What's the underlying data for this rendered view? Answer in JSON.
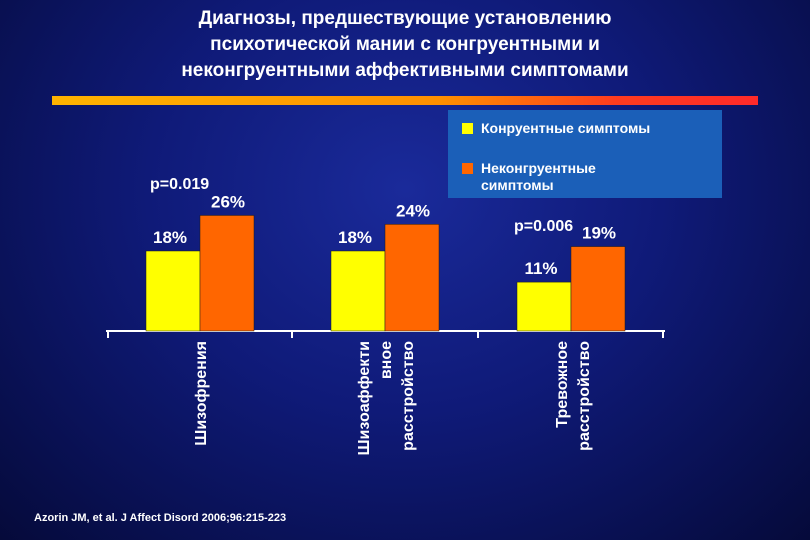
{
  "title": {
    "line1": "Диагнозы, предшествующие установлению",
    "line2": "психотической мании с конгруентными и",
    "line3": "неконгруентными аффективными симптомами"
  },
  "legend": {
    "item1": "Конруентные симптомы",
    "item2_line1": "Неконгруентные",
    "item2_line2": "симптомы"
  },
  "colors": {
    "congruent": "#ffff00",
    "incongruent": "#ff6600",
    "background": "#0f1a78",
    "legend_bg": "#1b5fb8"
  },
  "chart_data": {
    "type": "bar",
    "categories": [
      "Шизофрения",
      "Шизоаффективное расстройство",
      "Тревожное расстройство"
    ],
    "category_label_lines": [
      [
        "Шизофрения"
      ],
      [
        "Шизоаффекти",
        "вное",
        "расстройство"
      ],
      [
        "Тревожное",
        "расстройство"
      ]
    ],
    "series": [
      {
        "name": "Конруентные симптомы",
        "values": [
          18,
          18,
          11
        ],
        "labels": [
          "18%",
          "18%",
          "11%"
        ]
      },
      {
        "name": "Неконгруентные симптомы",
        "values": [
          26,
          24,
          19
        ],
        "labels": [
          "26%",
          "24%",
          "19%"
        ]
      }
    ],
    "annotations": [
      "p=0.019",
      "",
      "p=0.006"
    ],
    "ylim": [
      0,
      40
    ],
    "grid": false,
    "legend_position": "top-right"
  },
  "citation": "Azorin JM, et al. J Affect Disord 2006;96:215-223"
}
